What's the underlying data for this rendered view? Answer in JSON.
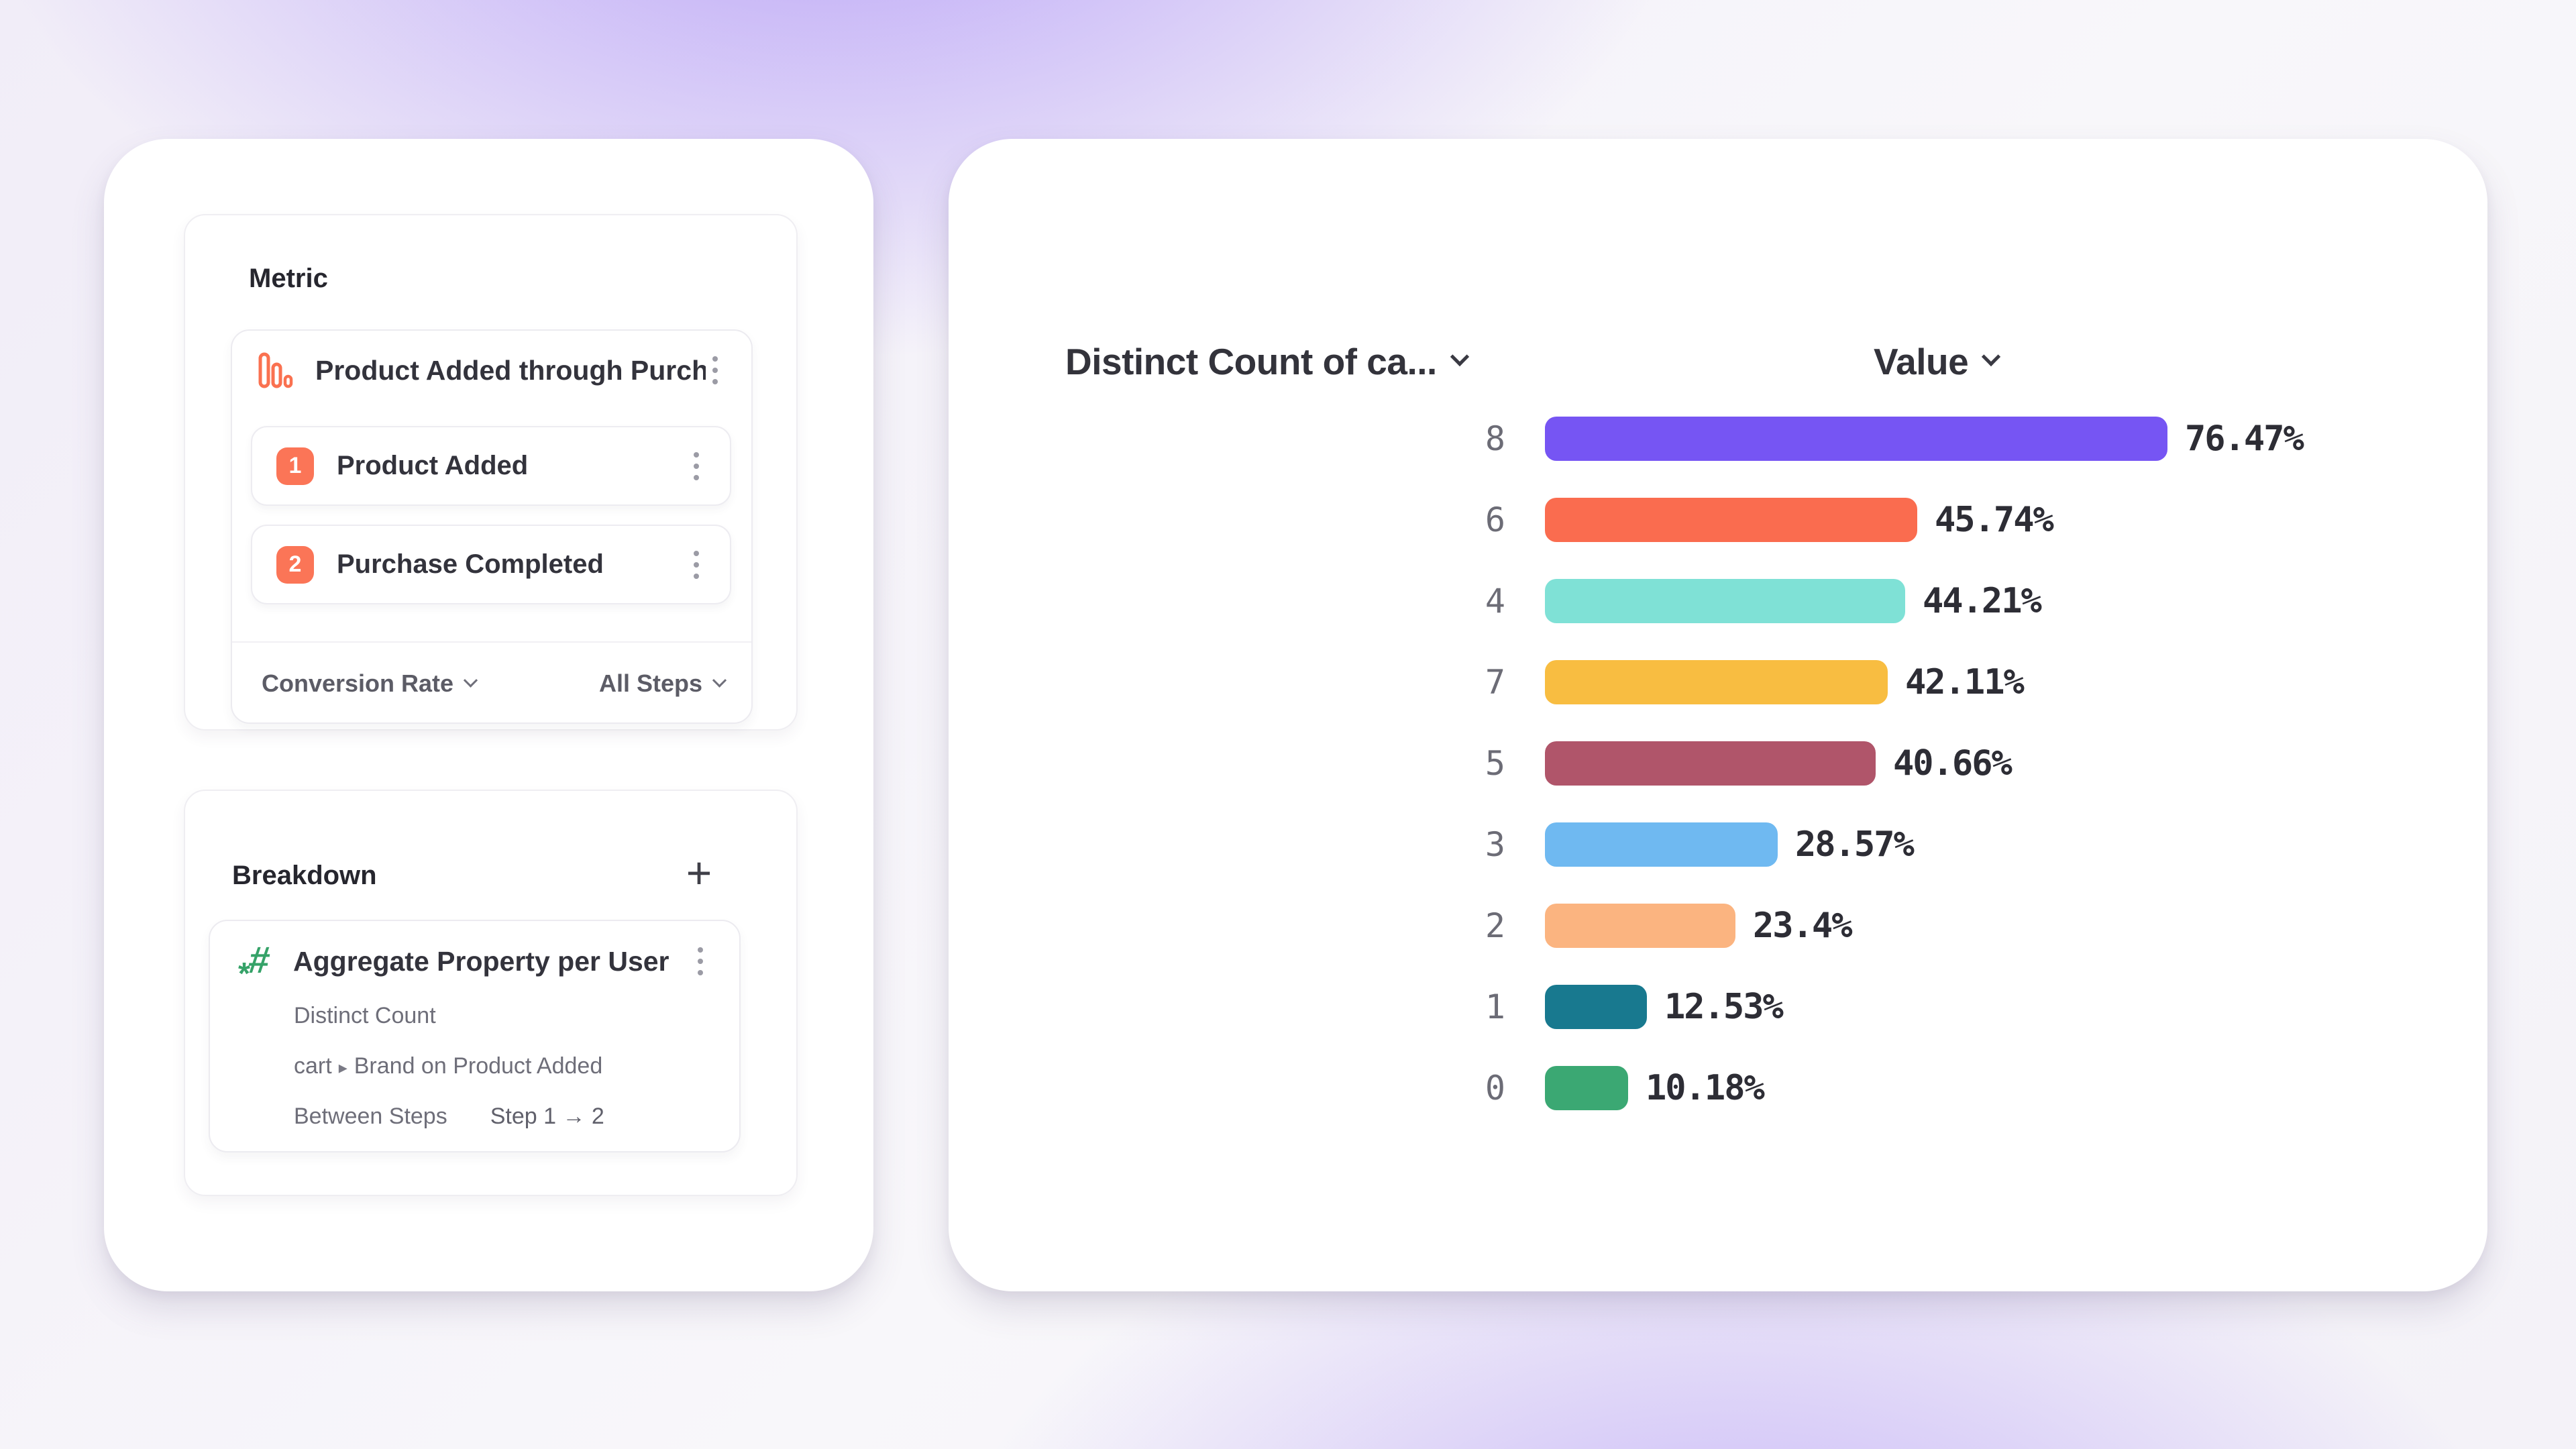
{
  "metric_panel": {
    "title": "Metric",
    "funnel": {
      "name": "Product Added through Purcha...",
      "icon": "funnel-bars-icon",
      "icon_color": "#FA7150",
      "steps": [
        {
          "number": "1",
          "label": "Product Added",
          "badge_color": "#FB7557"
        },
        {
          "number": "2",
          "label": "Purchase Completed",
          "badge_color": "#FB7557"
        }
      ],
      "footer": {
        "measure_dropdown": "Conversion Rate",
        "steps_dropdown": "All Steps"
      }
    }
  },
  "breakdown_panel": {
    "title": "Breakdown",
    "add_button": "+",
    "item": {
      "title": "Aggregate Property per User",
      "icon": "numeric-hash-icon",
      "icon_color": "#35A268",
      "aggregation": "Distinct Count",
      "property_prefix": "cart",
      "property_separator": "▸",
      "property_rest": "Brand on Product Added",
      "between_steps_label": "Between Steps",
      "between_steps_value": "Step 1 → 2"
    }
  },
  "chart": {
    "left_header": "Distinct Count of ca...",
    "right_header": "Value"
  },
  "chart_data": {
    "type": "bar",
    "orientation": "horizontal",
    "title": "Distinct Count of ca... by Value",
    "categories": [
      "8",
      "6",
      "4",
      "7",
      "5",
      "3",
      "2",
      "1",
      "0"
    ],
    "values": [
      76.47,
      45.74,
      44.21,
      42.11,
      40.66,
      28.57,
      23.4,
      12.53,
      10.18
    ],
    "labels": [
      "76.47%",
      "45.74%",
      "44.21%",
      "42.11%",
      "40.66%",
      "28.57%",
      "23.4%",
      "12.53%",
      "10.18%"
    ],
    "colors": [
      "#7655F3",
      "#FA6C4F",
      "#7FE1D6",
      "#F8BD41",
      "#B0556A",
      "#6FB9F1",
      "#FBB480",
      "#18798F",
      "#3BA873"
    ],
    "value_format": "percent",
    "xlim": [
      0,
      80
    ],
    "grid": false,
    "legend": false
  }
}
